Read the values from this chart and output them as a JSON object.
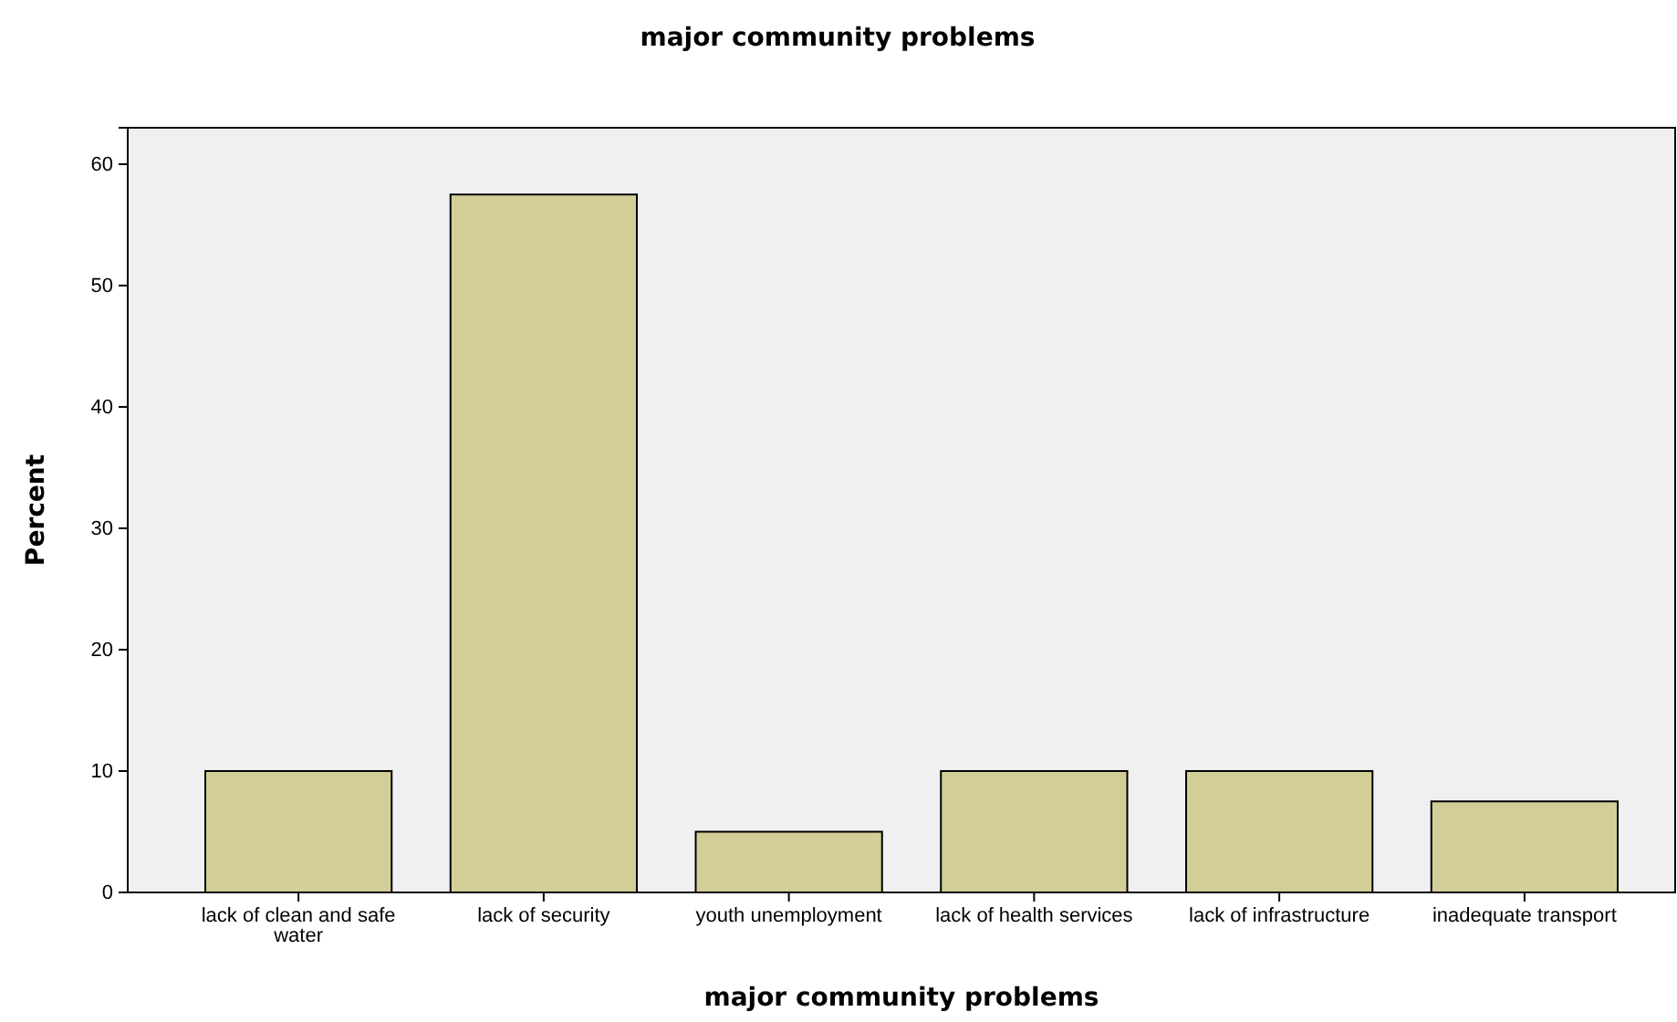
{
  "chart_data": {
    "type": "bar",
    "title": "major community problems",
    "xlabel": "major community problems",
    "ylabel": "Percent",
    "categories": [
      "lack of clean and safe water",
      "lack of security",
      "youth unemployment",
      "lack of health services",
      "lack of infrastructure",
      "inadequate transport"
    ],
    "values": [
      10,
      57.5,
      5,
      10,
      10,
      7.5
    ],
    "color": "#d3ce97",
    "ylim": [
      0,
      63
    ],
    "yticks": [
      0,
      10,
      20,
      30,
      40,
      50,
      60
    ],
    "grid": false
  }
}
